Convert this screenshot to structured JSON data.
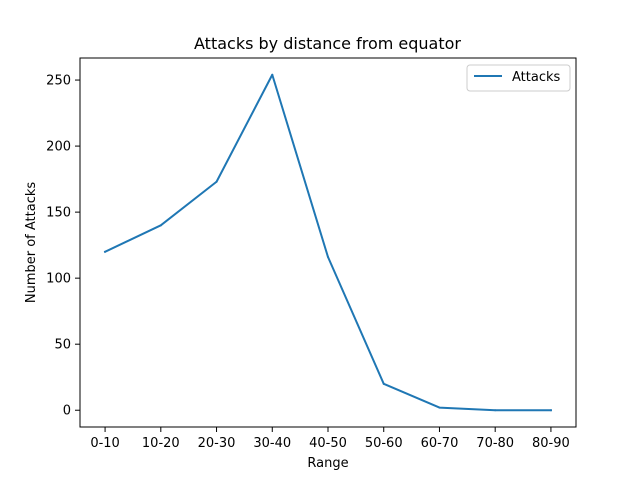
{
  "chart_data": {
    "type": "line",
    "title": "Attacks by distance from equator",
    "xlabel": "Range",
    "ylabel": "Number of Attacks",
    "categories": [
      "0-10",
      "10-20",
      "20-30",
      "30-40",
      "40-50",
      "50-60",
      "60-70",
      "70-80",
      "80-90"
    ],
    "series": [
      {
        "name": "Attacks",
        "values": [
          120,
          140,
          173,
          254,
          116,
          20,
          2,
          0,
          0
        ],
        "color": "#1f77b4"
      }
    ],
    "yticks": [
      0,
      50,
      100,
      150,
      200,
      250
    ],
    "ylim": [
      -12.7,
      266.7
    ],
    "grid": false,
    "legend_position": "top-right"
  }
}
